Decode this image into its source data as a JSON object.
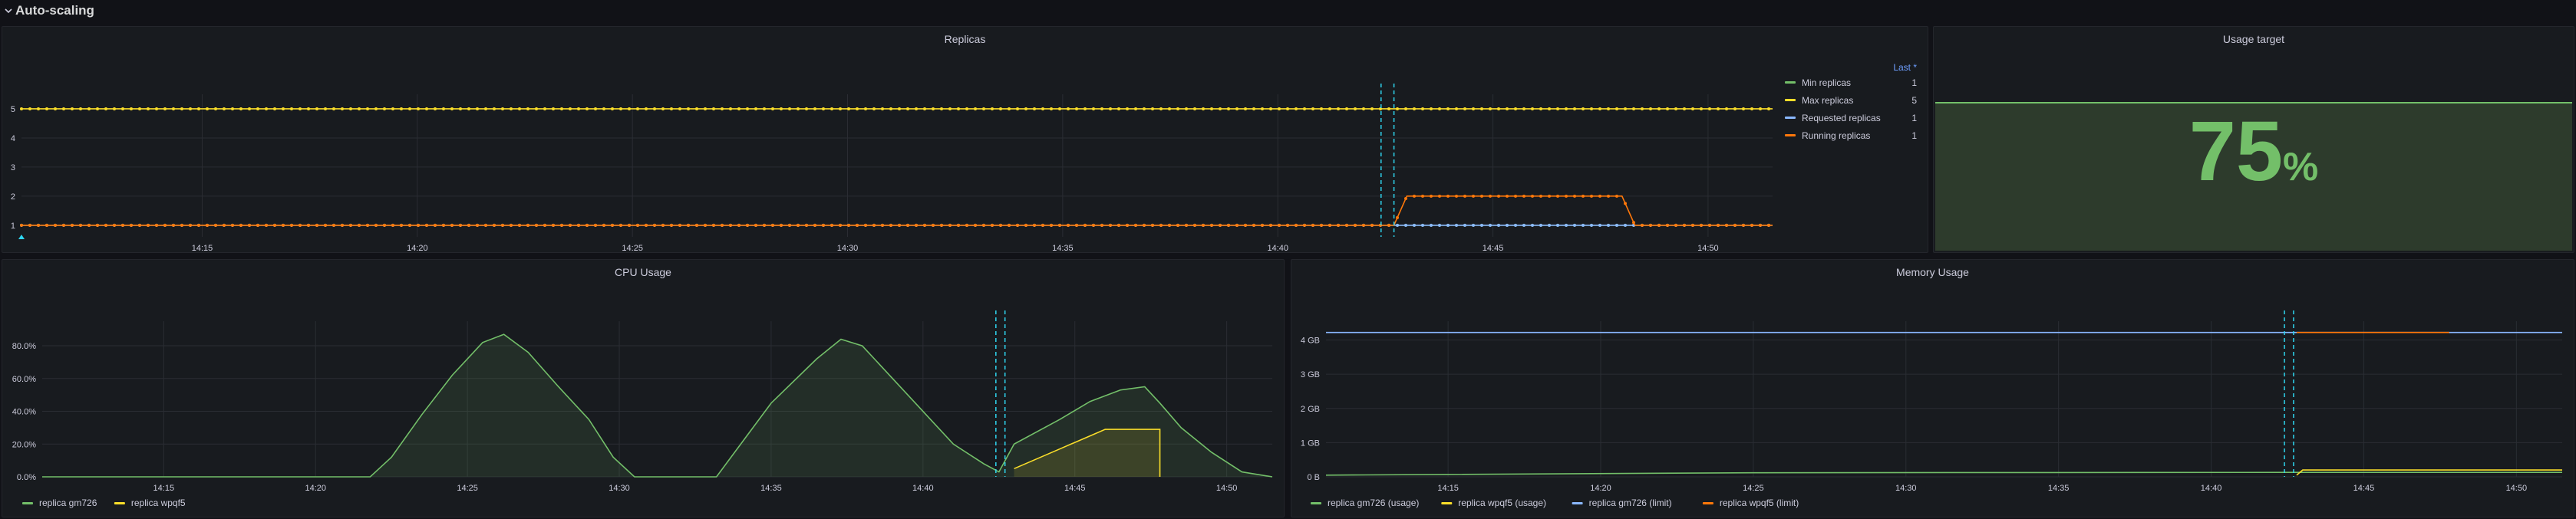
{
  "row": {
    "title": "Auto-scaling"
  },
  "colors": {
    "green": "#73bf69",
    "yellow": "#fade2a",
    "blue": "#8ab8ff",
    "orange": "#ff780a",
    "annotation": "#2fd6f0",
    "grid": "#2a2d33",
    "axis_text": "#ccccdc",
    "link": "#6e9fff"
  },
  "icons": {
    "row_toggle": "chevron-down-icon",
    "annotation_marker": "up-triangle-icon"
  },
  "panels": {
    "replicas": {
      "title": "Replicas",
      "legend_header": "Last *",
      "legend": [
        {
          "name": "Min replicas",
          "value": "1",
          "color": "#73bf69"
        },
        {
          "name": "Max replicas",
          "value": "5",
          "color": "#fade2a"
        },
        {
          "name": "Requested replicas",
          "value": "1",
          "color": "#8ab8ff"
        },
        {
          "name": "Running replicas",
          "value": "1",
          "color": "#ff780a"
        }
      ]
    },
    "usage_target": {
      "title": "Usage target",
      "value": "75",
      "unit": "%",
      "fraction": 0.75
    },
    "cpu": {
      "title": "CPU Usage",
      "legend": [
        {
          "name": "replica gm726",
          "color": "#73bf69"
        },
        {
          "name": "replica wpqf5",
          "color": "#fade2a"
        }
      ]
    },
    "memory": {
      "title": "Memory Usage",
      "legend": [
        {
          "name": "replica gm726 (usage)",
          "color": "#73bf69"
        },
        {
          "name": "replica wpqf5 (usage)",
          "color": "#fade2a"
        },
        {
          "name": "replica gm726 (limit)",
          "color": "#8ab8ff"
        },
        {
          "name": "replica wpqf5 (limit)",
          "color": "#ff780a"
        }
      ]
    }
  },
  "chart_data": [
    {
      "type": "line",
      "title": "Replicas",
      "x_ticks": [
        "14:15",
        "14:20",
        "14:25",
        "14:30",
        "14:35",
        "14:40",
        "14:45",
        "14:50"
      ],
      "x_range": [
        "14:10.8",
        "14:51.5"
      ],
      "y_ticks": [
        "1",
        "2",
        "3",
        "4",
        "5"
      ],
      "ylim": [
        0.6,
        5.5
      ],
      "annotations": [
        "14:42.4",
        "14:42.7"
      ],
      "series": [
        {
          "name": "Min replicas",
          "color": "#73bf69",
          "points": [
            [
              "14:10.8",
              1
            ],
            [
              "14:51.5",
              1
            ]
          ]
        },
        {
          "name": "Max replicas",
          "color": "#fade2a",
          "points": [
            [
              "14:10.8",
              5
            ],
            [
              "14:51.5",
              5
            ]
          ]
        },
        {
          "name": "Requested replicas",
          "color": "#8ab8ff",
          "points": [
            [
              "14:10.8",
              1
            ],
            [
              "14:51.5",
              1
            ]
          ]
        },
        {
          "name": "Running replicas",
          "color": "#ff780a",
          "points": [
            [
              "14:10.8",
              1
            ],
            [
              "14:42.7",
              1
            ],
            [
              "14:43.0",
              2
            ],
            [
              "14:48.0",
              2
            ],
            [
              "14:48.3",
              1
            ],
            [
              "14:51.5",
              1
            ]
          ]
        }
      ]
    },
    {
      "type": "area",
      "title": "CPU Usage",
      "x_ticks": [
        "14:15",
        "14:20",
        "14:25",
        "14:30",
        "14:35",
        "14:40",
        "14:45",
        "14:50"
      ],
      "x_range": [
        "14:11.0",
        "14:51.5"
      ],
      "y_ticks": [
        "0.0%",
        "20.0%",
        "40.0%",
        "60.0%",
        "80.0%"
      ],
      "ylim": [
        0,
        95
      ],
      "annotations": [
        "14:42.4",
        "14:42.7"
      ],
      "series": [
        {
          "name": "replica gm726",
          "color": "#73bf69",
          "points": [
            [
              "14:11.0",
              0
            ],
            [
              "14:21.8",
              0
            ],
            [
              "14:22.5",
              12
            ],
            [
              "14:23.5",
              38
            ],
            [
              "14:24.5",
              62
            ],
            [
              "14:25.5",
              82
            ],
            [
              "14:26.2",
              87
            ],
            [
              "14:27.0",
              76
            ],
            [
              "14:28.0",
              55
            ],
            [
              "14:29.0",
              35
            ],
            [
              "14:29.8",
              12
            ],
            [
              "14:30.5",
              0
            ],
            [
              "14:33.2",
              0
            ],
            [
              "14:34.0",
              20
            ],
            [
              "14:35.0",
              45
            ],
            [
              "14:36.5",
              72
            ],
            [
              "14:37.3",
              84
            ],
            [
              "14:38.0",
              80
            ],
            [
              "14:39.0",
              60
            ],
            [
              "14:40.0",
              40
            ],
            [
              "14:41.0",
              20
            ],
            [
              "14:42.0",
              8
            ],
            [
              "14:42.5",
              3
            ],
            [
              "14:43.0",
              20
            ],
            [
              "14:44.5",
              35
            ],
            [
              "14:45.5",
              46
            ],
            [
              "14:46.5",
              53
            ],
            [
              "14:47.3",
              55
            ],
            [
              "14:47.8",
              45
            ],
            [
              "14:48.5",
              30
            ],
            [
              "14:49.5",
              15
            ],
            [
              "14:50.5",
              3
            ],
            [
              "14:51.5",
              0
            ]
          ]
        },
        {
          "name": "replica wpqf5",
          "color": "#fade2a",
          "points": [
            [
              "14:43.0",
              5
            ],
            [
              "14:44.5",
              17
            ],
            [
              "14:45.5",
              25
            ],
            [
              "14:46.0",
              29
            ],
            [
              "14:47.8",
              29
            ],
            [
              "14:47.8",
              0
            ]
          ]
        }
      ]
    },
    {
      "type": "line",
      "title": "Memory Usage",
      "x_ticks": [
        "14:15",
        "14:20",
        "14:25",
        "14:30",
        "14:35",
        "14:40",
        "14:45",
        "14:50"
      ],
      "x_range": [
        "14:11.0",
        "14:51.5"
      ],
      "y_ticks": [
        "0 B",
        "1 GB",
        "2 GB",
        "3 GB",
        "4 GB"
      ],
      "ylim": [
        0,
        4.55
      ],
      "annotations": [
        "14:42.4",
        "14:42.7"
      ],
      "series": [
        {
          "name": "replica gm726 (usage)",
          "color": "#73bf69",
          "points": [
            [
              "14:11.0",
              0.05
            ],
            [
              "14:25.0",
              0.12
            ],
            [
              "14:42.5",
              0.13
            ],
            [
              "14:51.5",
              0.13
            ]
          ]
        },
        {
          "name": "replica wpqf5 (usage)",
          "color": "#fade2a",
          "points": [
            [
              "14:42.8",
              0.05
            ],
            [
              "14:43.0",
              0.2
            ],
            [
              "14:51.5",
              0.2
            ]
          ]
        },
        {
          "name": "replica gm726 (limit)",
          "color": "#8ab8ff",
          "points": [
            [
              "14:11.0",
              4.22
            ],
            [
              "14:51.5",
              4.22
            ]
          ]
        },
        {
          "name": "replica wpqf5 (limit)",
          "color": "#ff780a",
          "points": [
            [
              "14:42.8",
              4.22
            ],
            [
              "14:47.8",
              4.22
            ]
          ]
        }
      ]
    }
  ]
}
